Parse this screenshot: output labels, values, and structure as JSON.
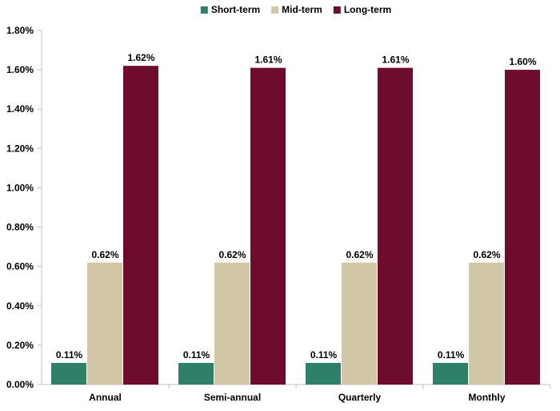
{
  "chart_data": {
    "type": "bar",
    "title": "",
    "xlabel": "",
    "ylabel": "",
    "categories": [
      "Annual",
      "Semi-annual",
      "Quarterly",
      "Monthly"
    ],
    "series": [
      {
        "name": "Short-term",
        "color": "#2e8068",
        "values": [
          0.11,
          0.11,
          0.11,
          0.11
        ],
        "labels": [
          "0.11%",
          "0.11%",
          "0.11%",
          "0.11%"
        ]
      },
      {
        "name": "Mid-term",
        "color": "#d1c6a6",
        "values": [
          0.62,
          0.62,
          0.62,
          0.62
        ],
        "labels": [
          "0.62%",
          "0.62%",
          "0.62%",
          "0.62%"
        ]
      },
      {
        "name": "Long-term",
        "color": "#6d0c2c",
        "values": [
          1.62,
          1.61,
          1.61,
          1.6
        ],
        "labels": [
          "1.62%",
          "1.61%",
          "1.61%",
          "1.60%"
        ]
      }
    ],
    "ylim": [
      0,
      1.8
    ],
    "y_ticks": [
      0,
      0.2,
      0.4,
      0.6,
      0.8,
      1.0,
      1.2,
      1.4,
      1.6,
      1.8
    ],
    "y_tick_labels": [
      "0.00%",
      "0.20%",
      "0.40%",
      "0.60%",
      "0.80%",
      "1.00%",
      "1.20%",
      "1.40%",
      "1.60%",
      "1.80%"
    ],
    "grid": false,
    "legend_position": "top-center",
    "axis_color": "#bfbfbf"
  }
}
